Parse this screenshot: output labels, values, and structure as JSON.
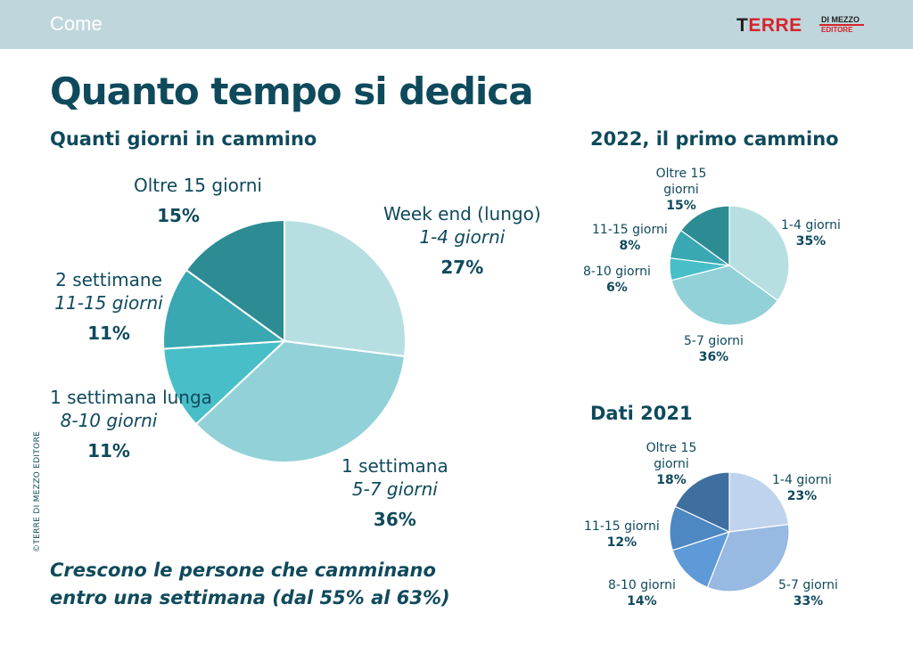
{
  "header": {
    "section": "Come",
    "logo": {
      "main_black": "T",
      "main_red": "ERRE",
      "top": "DI MEZZO",
      "bottom": "EDITORE"
    }
  },
  "title": "Quanto tempo si dedica",
  "copyright": "©TERRE DI MEZZO EDITORE",
  "footnote": [
    "Crescono le persone che camminano",
    "entro una settimana (dal 55% al 63%)"
  ],
  "chart_data": [
    {
      "type": "pie",
      "title": "Quanti giorni in cammino",
      "slices": [
        {
          "label": "Week end (lungo)",
          "sublabel": "1-4 giorni",
          "value": 27,
          "display": "27%",
          "color": "#b7dfe2"
        },
        {
          "label": "1 settimana",
          "sublabel": "5-7 giorni",
          "value": 36,
          "display": "36%",
          "color": "#92d1d8"
        },
        {
          "label": "1 settimana lunga",
          "sublabel": "8-10 giorni",
          "value": 11,
          "display": "11%",
          "color": "#48bfc8"
        },
        {
          "label": "2 settimane",
          "sublabel": "11-15 giorni",
          "value": 11,
          "display": "11%",
          "color": "#3aa8b2"
        },
        {
          "label": "Oltre 15 giorni",
          "sublabel": "",
          "value": 15,
          "display": "15%",
          "color": "#2d8b93"
        }
      ]
    },
    {
      "type": "pie",
      "title": "2022, il primo cammino",
      "slices": [
        {
          "label": "1-4 giorni",
          "value": 35,
          "display": "35%",
          "color": "#b7dfe2"
        },
        {
          "label": "5-7 giorni",
          "value": 36,
          "display": "36%",
          "color": "#92d1d8"
        },
        {
          "label": "8-10 giorni",
          "value": 6,
          "display": "6%",
          "color": "#48bfc8"
        },
        {
          "label": "11-15 giorni",
          "value": 8,
          "display": "8%",
          "color": "#3aa8b2"
        },
        {
          "label": "Oltre 15 giorni",
          "value": 15,
          "display": "15%",
          "color": "#2d8b93"
        }
      ]
    },
    {
      "type": "pie",
      "title": "Dati 2021",
      "slices": [
        {
          "label": "1-4 giorni",
          "value": 23,
          "display": "23%",
          "color": "#bfd3ec"
        },
        {
          "label": "5-7 giorni",
          "value": 33,
          "display": "33%",
          "color": "#97b9e2"
        },
        {
          "label": "8-10 giorni",
          "value": 14,
          "display": "14%",
          "color": "#5f9ad8"
        },
        {
          "label": "11-15 giorni",
          "value": 12,
          "display": "12%",
          "color": "#4d88c2"
        },
        {
          "label": "Oltre 15 giorni",
          "value": 18,
          "display": "18%",
          "color": "#3f6f9f"
        }
      ]
    }
  ]
}
